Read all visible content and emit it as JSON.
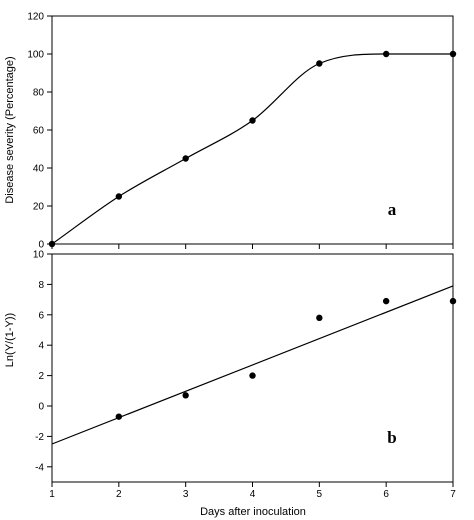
{
  "chart_data": [
    {
      "panel": "a",
      "type": "line",
      "ylabel": "Disease severity (Percentage)",
      "xlabel": "",
      "xlim": [
        1,
        7
      ],
      "ylim": [
        0,
        120
      ],
      "yticks": [
        0,
        20,
        40,
        60,
        80,
        100,
        120
      ],
      "xticks": [
        1,
        2,
        3,
        4,
        5,
        6,
        7
      ],
      "series": [
        {
          "points": [
            [
              1,
              0
            ],
            [
              2,
              25
            ],
            [
              3,
              45
            ],
            [
              4,
              65
            ],
            [
              5,
              95
            ],
            [
              6,
              100
            ],
            [
              7,
              100
            ]
          ],
          "curve": "smooth"
        }
      ]
    },
    {
      "panel": "b",
      "type": "scatter",
      "ylabel": "Ln(Y/(1-Y))",
      "xlabel": "Days after inoculation",
      "xlim": [
        1,
        7
      ],
      "ylim": [
        -5,
        10
      ],
      "yticks": [
        -4,
        -2,
        0,
        2,
        4,
        6,
        8,
        10
      ],
      "xticks": [
        1,
        2,
        3,
        4,
        5,
        6,
        7
      ],
      "series": [
        {
          "points": [
            [
              2,
              -0.7
            ],
            [
              3,
              0.7
            ],
            [
              4,
              2.0
            ],
            [
              5,
              5.8
            ],
            [
              6,
              6.9
            ],
            [
              7,
              6.9
            ]
          ]
        }
      ],
      "regression_line": [
        [
          1,
          -2.5
        ],
        [
          7,
          7.9
        ]
      ]
    }
  ]
}
